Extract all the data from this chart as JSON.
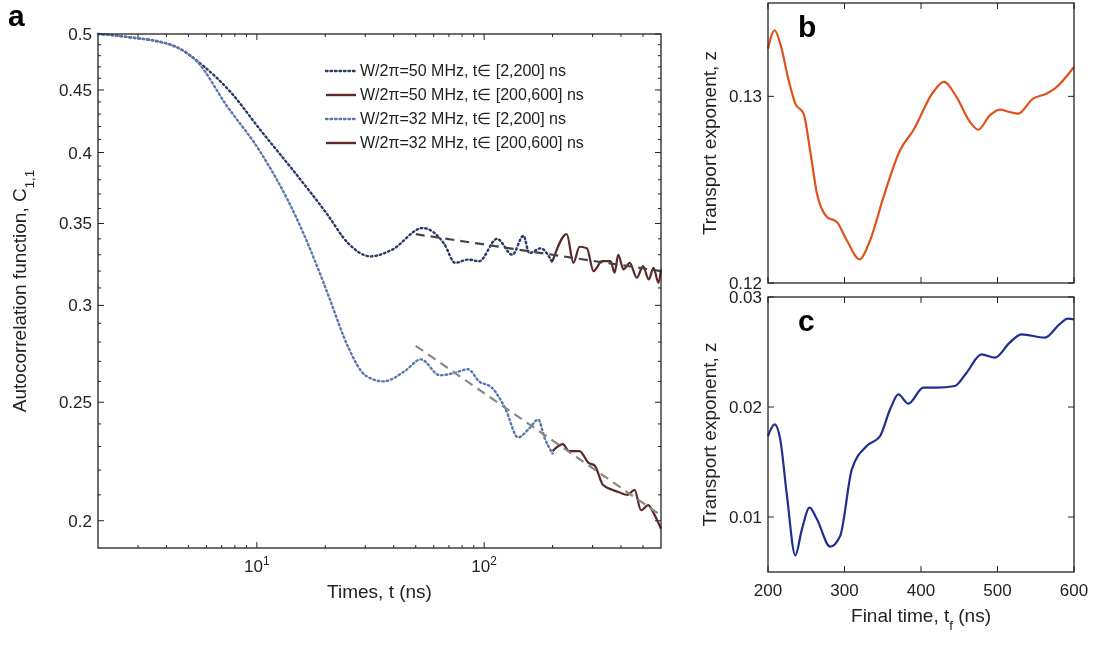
{
  "chart_data": [
    {
      "type": "line",
      "title": "a",
      "xlabel": "Times, t (ns)",
      "ylabel": "Autocorrelation function, C$_{1,1}$",
      "log": "xy",
      "legend": "top right",
      "xlim": [
        2,
        600
      ],
      "ylim": [
        0.19,
        0.5
      ],
      "xticks": [
        {
          "value": 3,
          "label": null
        },
        {
          "value": 4,
          "label": null
        },
        {
          "value": 5,
          "label": null
        },
        {
          "value": 6,
          "label": null
        },
        {
          "value": 7,
          "label": null
        },
        {
          "value": 8,
          "label": null
        },
        {
          "value": 9,
          "label": null
        },
        {
          "value": 10,
          "label": "10$^{1}$"
        },
        {
          "value": 20,
          "label": null
        },
        {
          "value": 30,
          "label": null
        },
        {
          "value": 40,
          "label": null
        },
        {
          "value": 50,
          "label": null
        },
        {
          "value": 60,
          "label": null
        },
        {
          "value": 70,
          "label": null
        },
        {
          "value": 80,
          "label": null
        },
        {
          "value": 90,
          "label": null
        },
        {
          "value": 100,
          "label": "10$^{2}$"
        },
        {
          "value": 200,
          "label": null
        },
        {
          "value": 300,
          "label": null
        },
        {
          "value": 400,
          "label": null
        },
        {
          "value": 500,
          "label": null
        }
      ],
      "yticks": [
        0.2,
        {
          "value": 0.21,
          "label": null
        },
        {
          "value": 0.22,
          "label": null
        },
        {
          "value": 0.23,
          "label": null
        },
        {
          "value": 0.24,
          "label": null
        },
        0.25,
        {
          "value": 0.26,
          "label": null
        },
        {
          "value": 0.27,
          "label": null
        },
        {
          "value": 0.28,
          "label": null
        },
        {
          "value": 0.29,
          "label": null
        },
        0.3,
        {
          "value": 0.31,
          "label": null
        },
        {
          "value": 0.32,
          "label": null
        },
        {
          "value": 0.33,
          "label": null
        },
        {
          "value": 0.34,
          "label": null
        },
        0.35,
        {
          "value": 0.36,
          "label": null
        },
        {
          "value": 0.37,
          "label": null
        },
        {
          "value": 0.38,
          "label": null
        },
        {
          "value": 0.39,
          "label": null
        },
        0.4,
        {
          "value": 0.41,
          "label": null
        },
        {
          "value": 0.42,
          "label": null
        },
        {
          "value": 0.43,
          "label": null
        },
        {
          "value": 0.44,
          "label": null
        },
        0.45,
        {
          "value": 0.46,
          "label": null
        },
        {
          "value": 0.47,
          "label": null
        },
        {
          "value": 0.48,
          "label": null
        },
        {
          "value": 0.49,
          "label": null
        },
        0.5
      ],
      "series": [
        {
          "name": "W/2π=50 MHz, t∈ [2,200] ns",
          "color": "#2b3a67",
          "line_style": "dotted",
          "x": [
            2,
            2.74,
            4.3,
            5.8,
            7.6,
            10.4,
            14.9,
            20.2,
            25.3,
            31.6,
            39.2,
            53.7,
            66.6,
            74.6,
            85,
            95,
            114,
            133,
            149,
            158,
            177,
            200
          ],
          "values": [
            0.5,
            0.497,
            0.489,
            0.471,
            0.449,
            0.417,
            0.384,
            0.357,
            0.337,
            0.329,
            0.333,
            0.347,
            0.337,
            0.325,
            0.327,
            0.326,
            0.34,
            0.33,
            0.342,
            0.331,
            0.334,
            0.325
          ]
        },
        {
          "name": "W/2π=50 MHz, t∈ [200,600] ns",
          "color": "#5a2a2a",
          "line_style": "solid",
          "x": [
            200,
            231,
            247,
            263,
            283,
            303,
            330,
            360,
            375,
            389,
            410,
            437,
            470,
            500,
            530,
            556,
            585,
            600
          ],
          "values": [
            0.326,
            0.343,
            0.325,
            0.335,
            0.334,
            0.32,
            0.326,
            0.326,
            0.319,
            0.33,
            0.321,
            0.325,
            0.316,
            0.323,
            0.315,
            0.322,
            0.313,
            0.321
          ]
        },
        {
          "name": "W/2π=32 MHz, t∈ [2,200] ns",
          "color": "#5a78b0",
          "line_style": "dotted",
          "x": [
            2,
            2.74,
            4.3,
            5.5,
            7.3,
            10.4,
            14.9,
            19.4,
            21,
            25.3,
            30,
            36.1,
            44.7,
            52.7,
            63.8,
            73,
            85,
            95,
            108,
            124,
            141,
            158,
            173,
            184,
            200
          ],
          "values": [
            0.5,
            0.497,
            0.489,
            0.474,
            0.438,
            0.4,
            0.354,
            0.315,
            0.303,
            0.277,
            0.263,
            0.26,
            0.265,
            0.271,
            0.263,
            0.264,
            0.266,
            0.26,
            0.257,
            0.247,
            0.234,
            0.238,
            0.242,
            0.234,
            0.227
          ]
        },
        {
          "name": "W/2π=32 MHz, t∈ [200,600] ns",
          "color": "#5a2a2a",
          "line_style": "solid",
          "x": [
            200,
            222,
            236,
            263,
            288,
            306,
            333,
            366,
            392,
            428,
            459,
            490,
            527,
            556,
            600
          ],
          "values": [
            0.228,
            0.231,
            0.228,
            0.228,
            0.223,
            0.222,
            0.214,
            0.212,
            0.211,
            0.21,
            0.212,
            0.204,
            0.206,
            0.203,
            0.197
          ]
        },
        {
          "color": "#444444",
          "line_style": "dashed",
          "x": [
            50,
            600
          ],
          "values": [
            0.343,
            0.32
          ]
        },
        {
          "color": "#888888",
          "line_style": "dashed",
          "x": [
            50,
            600
          ],
          "values": [
            0.278,
            0.202
          ]
        }
      ]
    },
    {
      "type": "line",
      "title": "b",
      "ylabel": "Transport exponent, z",
      "xlim": [
        200,
        600
      ],
      "ylim": [
        0.12,
        0.135
      ],
      "xticks": [
        200,
        300,
        400,
        500,
        600
      ],
      "yticks": [
        0.12,
        0.13
      ],
      "tick_labels": "y",
      "series": [
        {
          "color": "#e0521b",
          "x": [
            200,
            208.7,
            216,
            227,
            235.7,
            246.5,
            255,
            264,
            277,
            290,
            303,
            319.6,
            333.5,
            351,
            372.6,
            390,
            416,
            430,
            446.5,
            464,
            474.8,
            490,
            503,
            516,
            527,
            546.5,
            564,
            574.8,
            600
          ],
          "values": [
            0.13255,
            0.13354,
            0.13282,
            0.13086,
            0.12961,
            0.12907,
            0.12711,
            0.12479,
            0.12354,
            0.12327,
            0.12229,
            0.12127,
            0.12229,
            0.12461,
            0.12711,
            0.12818,
            0.13023,
            0.13077,
            0.12996,
            0.12863,
            0.12821,
            0.12898,
            0.12929,
            0.12916,
            0.12907,
            0.12988,
            0.13014,
            0.13041,
            0.13157
          ]
        }
      ]
    },
    {
      "type": "line",
      "title": "c",
      "xlabel": "Final time, t$_{f}$ (ns)",
      "ylabel": "Transport exponent, z",
      "xlim": [
        200,
        600
      ],
      "ylim": [
        0.005,
        0.03
      ],
      "xticks": [
        200,
        300,
        400,
        500,
        600
      ],
      "yticks": [
        0.01,
        0.02,
        0.03
      ],
      "series": [
        {
          "color": "#1f2f8f",
          "x": [
            200,
            208.7,
            216,
            224.8,
            235.7,
            244.3,
            254.3,
            264,
            281.3,
            294.3,
            309.6,
            329,
            346.5,
            359.6,
            370.4,
            383.5,
            403,
            420.4,
            444.3,
            459.6,
            479,
            496.5,
            516,
            531.5,
            562,
            581,
            592,
            600
          ],
          "values": [
            0.01736,
            0.01842,
            0.01706,
            0.01191,
            0.00652,
            0.00888,
            0.01085,
            0.00979,
            0.0073,
            0.00827,
            0.01433,
            0.01645,
            0.01736,
            0.01979,
            0.02115,
            0.0203,
            0.02176,
            0.02176,
            0.02191,
            0.02312,
            0.02479,
            0.02448,
            0.02585,
            0.02661,
            0.0263,
            0.02752,
            0.02803,
            0.02797
          ]
        }
      ]
    }
  ]
}
